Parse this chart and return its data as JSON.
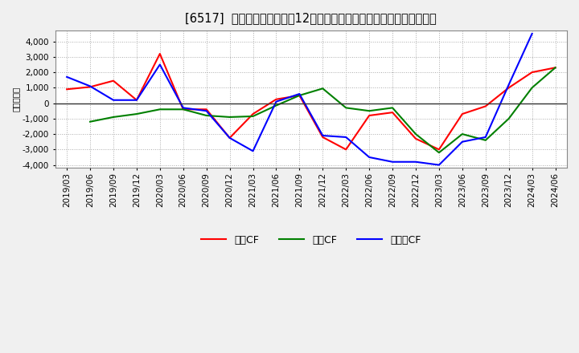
{
  "title": "[6517]  キャッシュフローの12か月移動合計の対前年同期増減額の推移",
  "ylabel": "（百万円）",
  "xlabels": [
    "2019/03",
    "2019/06",
    "2019/09",
    "2019/12",
    "2020/03",
    "2020/06",
    "2020/09",
    "2020/12",
    "2021/03",
    "2021/06",
    "2021/09",
    "2021/12",
    "2022/03",
    "2022/06",
    "2022/09",
    "2022/12",
    "2023/03",
    "2023/06",
    "2023/09",
    "2023/12",
    "2024/03",
    "2024/06"
  ],
  "eigyo_cf": [
    900,
    1050,
    1450,
    200,
    3200,
    -400,
    -400,
    -2250,
    -700,
    250,
    500,
    -2200,
    -3000,
    -800,
    -600,
    -2300,
    -3000,
    -700,
    -200,
    1000,
    2000,
    2300
  ],
  "toshi_cf": [
    null,
    -1200,
    -900,
    -700,
    -400,
    -400,
    -800,
    -900,
    -850,
    -150,
    500,
    950,
    -300,
    -500,
    -300,
    -2000,
    -3200,
    -2000,
    -2400,
    -1000,
    1000,
    2300
  ],
  "free_cf": [
    1700,
    1100,
    200,
    200,
    2500,
    -300,
    -500,
    -2250,
    -3100,
    100,
    600,
    -2100,
    -2200,
    -3500,
    -3800,
    -3800,
    -4000,
    -2500,
    -2200,
    1200,
    4500,
    null
  ],
  "ylim": [
    -4200,
    4700
  ],
  "yticks": [
    -4000,
    -3000,
    -2000,
    -1000,
    0,
    1000,
    2000,
    3000,
    4000
  ],
  "eigyo_color": "#ff0000",
  "toshi_color": "#008000",
  "free_color": "#0000ff",
  "bg_color": "#f0f0f0",
  "plot_bg_color": "#ffffff",
  "grid_color": "#aaaaaa",
  "title_fontsize": 10.5,
  "axis_fontsize": 7.5,
  "legend_fontsize": 9
}
